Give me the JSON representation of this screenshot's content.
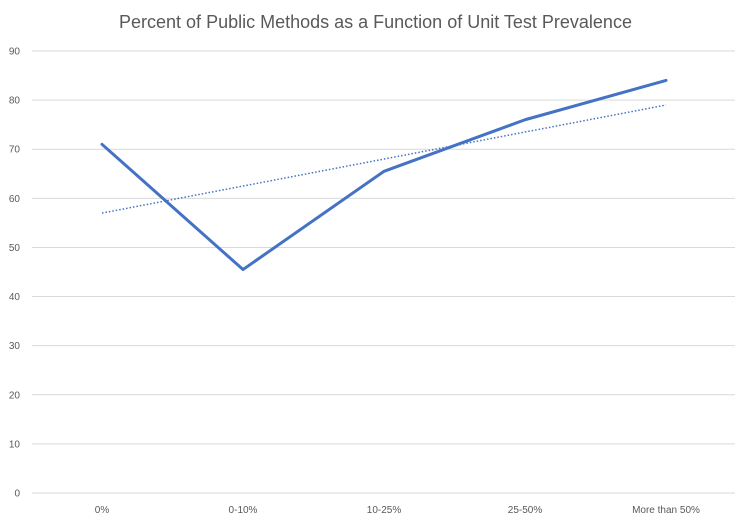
{
  "chart_data": {
    "type": "line",
    "title": "Percent of Public Methods as a Function of Unit Test Prevalence",
    "xlabel": "",
    "ylabel": "",
    "categories": [
      "0%",
      "0-10%",
      "10-25%",
      "25-50%",
      "More than 50%"
    ],
    "series": [
      {
        "values": [
          71,
          45.5,
          65.5,
          76,
          84
        ],
        "color": "#4472c4",
        "style": "solid"
      }
    ],
    "trendline": {
      "kind": "linear",
      "values": [
        57,
        62.5,
        68,
        73.5,
        79
      ],
      "color": "#4472c4",
      "style": "dotted"
    },
    "ylim": [
      0,
      90
    ],
    "yticks": [
      0,
      10,
      20,
      30,
      40,
      50,
      60,
      70,
      80,
      90
    ],
    "grid": true,
    "legend": "none"
  },
  "colors": {
    "gridline": "#d9d9d9",
    "text": "#595959",
    "series": "#4472c4"
  }
}
